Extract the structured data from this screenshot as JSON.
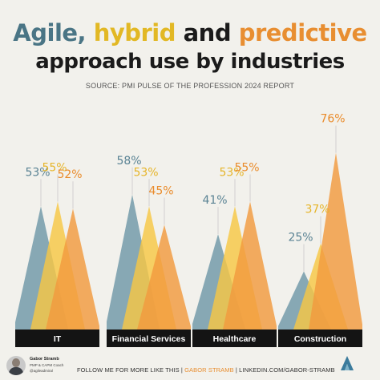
{
  "header": {
    "title_part1": "Agile,",
    "title_part2": "hybrid",
    "title_part3": "and",
    "title_part4": "predictive",
    "title_line2": "approach use by industries",
    "source": "SOURCE: PMI PULSE OF THE PROFESSION 2024 REPORT"
  },
  "colors": {
    "agile": "#6f97a7",
    "hybrid": "#f7c744",
    "predictive": "#f29a3e",
    "label_agile": "#5a8394",
    "label_hybrid": "#e6b52a",
    "label_predictive": "#ea8c2c",
    "band": "#141414"
  },
  "chart_data": {
    "type": "bar",
    "categories": [
      "IT",
      "Financial Services",
      "Healthcare",
      "Construction"
    ],
    "unit": "%",
    "ylim": [
      0,
      80
    ],
    "series": [
      {
        "name": "Agile",
        "values": [
          53,
          58,
          41,
          25
        ]
      },
      {
        "name": "Hybrid",
        "values": [
          55,
          53,
          53,
          37
        ]
      },
      {
        "name": "Predictive",
        "values": [
          52,
          45,
          55,
          76
        ]
      }
    ],
    "data_labels": [
      [
        "53%",
        "55%",
        "52%"
      ],
      [
        "58%",
        "53%",
        "45%"
      ],
      [
        "41%",
        "53%",
        "55%"
      ],
      [
        "25%",
        "37%",
        "76%"
      ]
    ]
  },
  "footer": {
    "author_name": "Gabor Stramb",
    "author_role": "PMP & CAPM Coach",
    "author_handle": "@agileadmiral",
    "follow_text": "FOLLOW ME FOR MORE LIKE THIS | ",
    "follow_name": "GABOR STRAMB",
    "follow_link": " | LINKEDIN.COM/GABOR-STRAMB",
    "logo_icon": "mountain-a-logo-icon"
  }
}
